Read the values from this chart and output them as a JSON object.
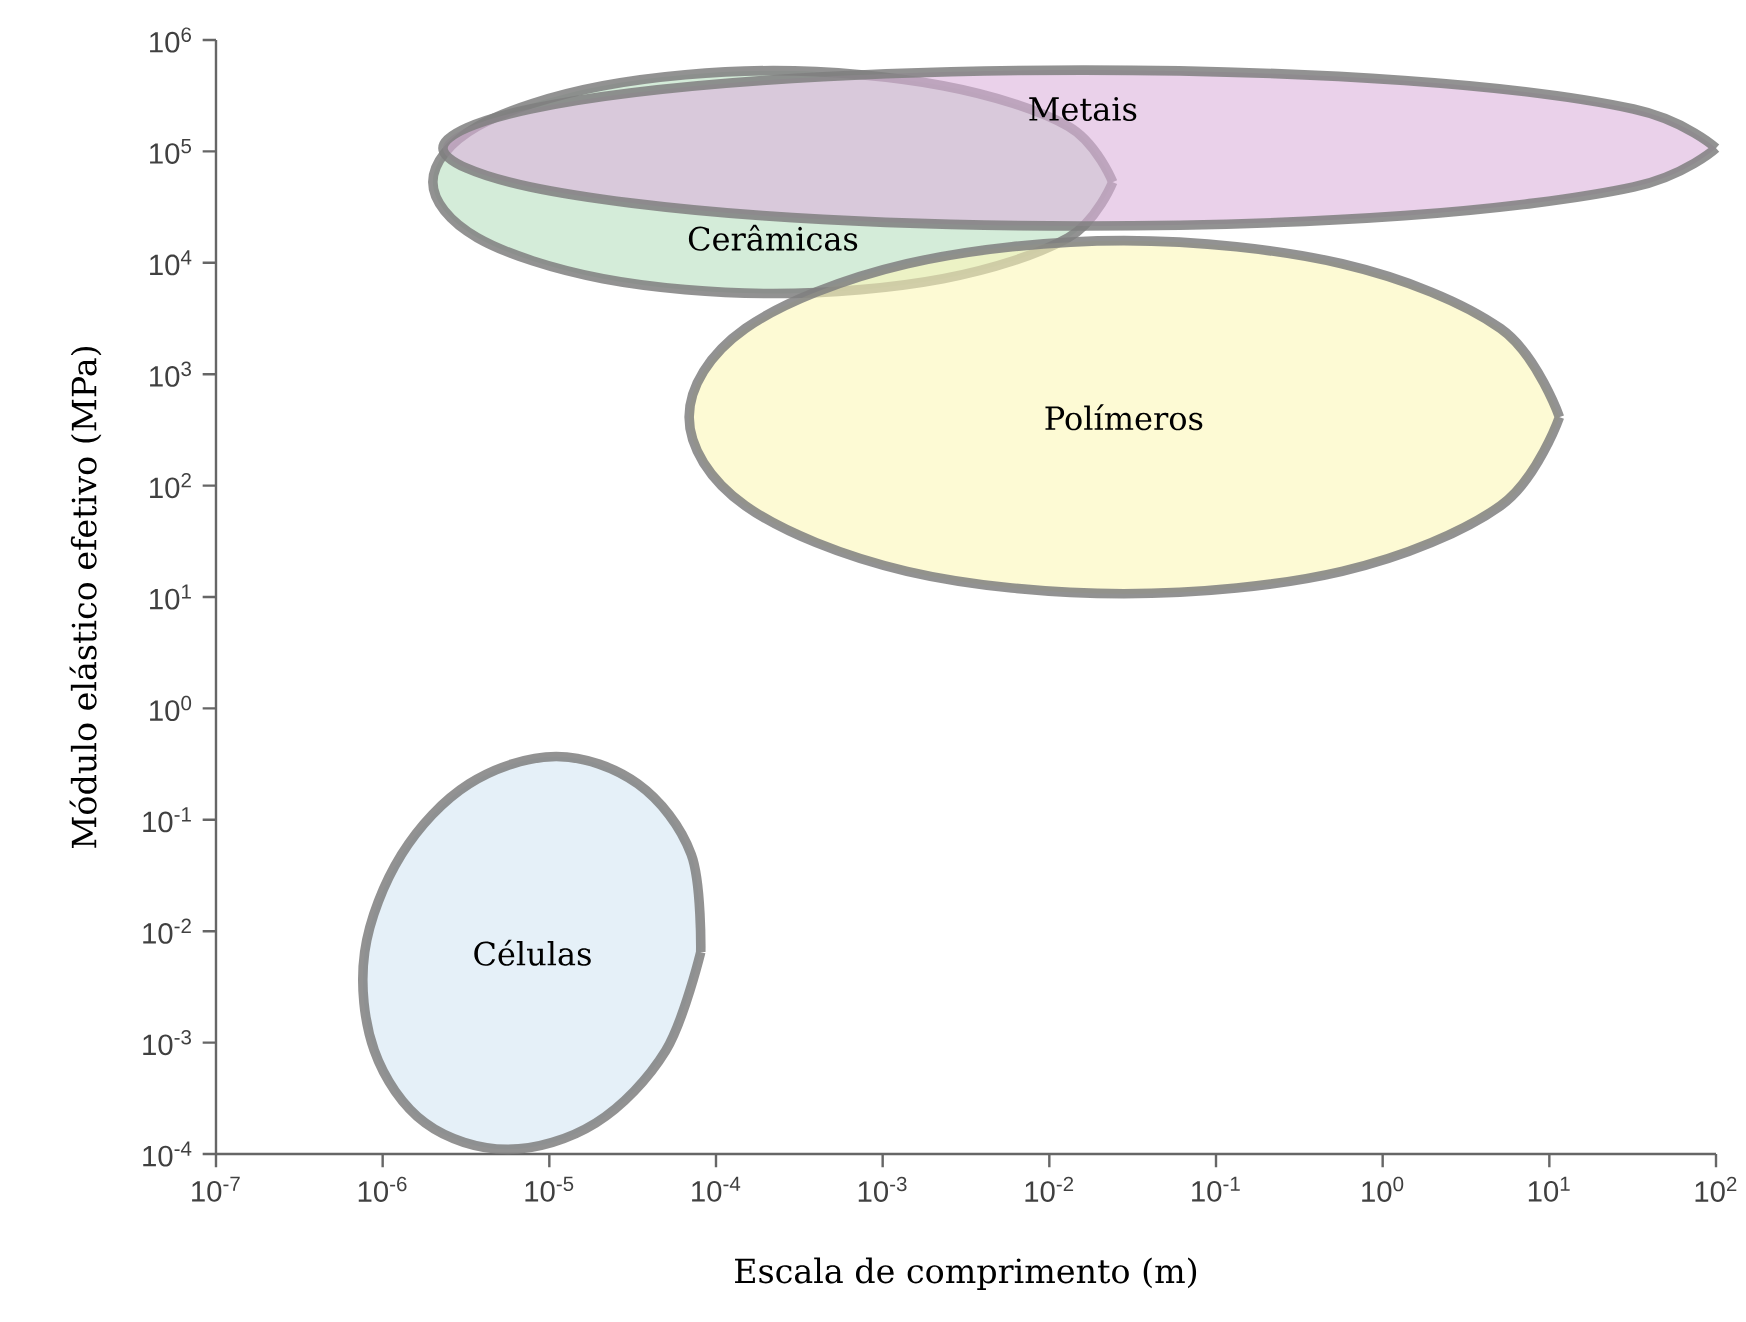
{
  "chart_data": {
    "type": "area",
    "xlabel": "Escala de comprimento (m)",
    "ylabel": "Módulo elástico efetivo (MPa)",
    "log": "xy",
    "xlim": [
      1e-07,
      100
    ],
    "ylim": [
      0.0001,
      1000000.0
    ],
    "xticks": [
      {
        "value": 1e-07,
        "label": "10$^{-7}$"
      },
      {
        "value": 1e-06,
        "label": "10$^{-6}$"
      },
      {
        "value": 1e-05,
        "label": "10$^{-5}$"
      },
      {
        "value": 0.0001,
        "label": "10$^{-4}$"
      },
      {
        "value": 0.001,
        "label": "10$^{-3}$"
      },
      {
        "value": 0.01,
        "label": "10$^{-2}$"
      },
      {
        "value": 0.1,
        "label": "10$^{-1}$"
      },
      {
        "value": 1,
        "label": "10$^{0}$"
      },
      {
        "value": 10,
        "label": "10$^{1}$"
      },
      {
        "value": 100,
        "label": "10$^{2}$"
      }
    ],
    "yticks": [
      {
        "value": 0.0001,
        "label": "10$^{-4}$"
      },
      {
        "value": 0.001,
        "label": "10$^{-3}$"
      },
      {
        "value": 0.01,
        "label": "10$^{-2}$"
      },
      {
        "value": 0.1,
        "label": "10$^{-1}$"
      },
      {
        "value": 1,
        "label": "10$^{0}$"
      },
      {
        "value": 10,
        "label": "10$^{1}$"
      },
      {
        "value": 100,
        "label": "10$^{2}$"
      },
      {
        "value": 1000,
        "label": "10$^{3}$"
      },
      {
        "value": 10000,
        "label": "10$^{4}$"
      },
      {
        "value": 100000,
        "label": "10$^{5}$"
      },
      {
        "value": 1000000,
        "label": "10$^{6}$"
      }
    ],
    "marker": "none",
    "legend": false,
    "series": [
      {
        "name": "Cerâmicas",
        "color": "#b8dfc0",
        "x": [
          0.024,
          0.013,
          0.0023,
          0.00022,
          2.1e-05,
          3.7e-06,
          2e-06,
          3.7e-06,
          2.1e-05,
          0.00022,
          0.0023,
          0.013
        ],
        "values": [
          53000,
          168000,
          389000,
          531000,
          389000,
          168000,
          53000,
          16800,
          7200,
          5300,
          7200,
          16800
        ]
      },
      {
        "name": "Metais",
        "color": "#dcb3dc",
        "x": [
          100,
          32,
          1.35,
          0.016,
          0.00019,
          7.7e-06,
          2.3e-06,
          7.7e-06,
          0.00019,
          0.016,
          1.35,
          32
        ],
        "values": [
          107000,
          240000,
          433000,
          537000,
          433000,
          240000,
          107000,
          47900,
          26500,
          21400,
          26500,
          47900
        ]
      },
      {
        "name": "Polímeros",
        "color": "#fbf6b8",
        "x": [
          11.5,
          5.1,
          0.57,
          0.028,
          0.0014,
          0.00015,
          6.9e-05,
          0.00015,
          0.0014,
          0.028,
          0.57,
          5.1
        ],
        "values": [
          412,
          2570,
          9800,
          15800,
          9800,
          2570,
          412,
          66,
          17,
          10.7,
          17,
          66
        ]
      },
      {
        "name": "Células",
        "color": "#d3e6f3",
        "x": [
          8.1e-05,
          7.1e-05,
          3.4e-05,
          1.1e-05,
          3.3e-06,
          1.3e-06,
          7.8e-07,
          8.9e-07,
          1.8e-06,
          5.6e-06,
          1.9e-05,
          5e-05
        ],
        "values": [
          0.0065,
          0.049,
          0.21,
          0.37,
          0.21,
          0.049,
          0.0065,
          0.00085,
          0.00019,
          0.00011,
          0.00019,
          0.00085
        ]
      }
    ]
  }
}
